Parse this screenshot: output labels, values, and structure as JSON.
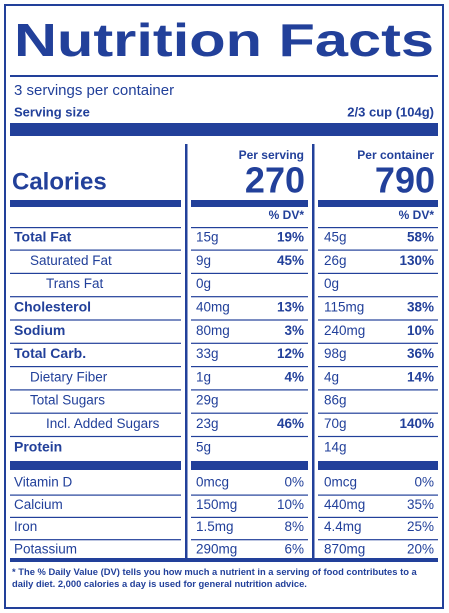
{
  "title": "Nutrition Facts",
  "servings": "3 servings per container",
  "serving_size": {
    "label": "Serving size",
    "value": "2/3 cup (104g)"
  },
  "calories_label": "Calories",
  "columns": [
    {
      "header": "Per serving",
      "calories": "270",
      "dv_header": "% DV*"
    },
    {
      "header": "Per container",
      "calories": "790",
      "dv_header": "% DV*"
    }
  ],
  "nutrients": [
    {
      "name": "Total Fat",
      "serving": {
        "amount": "15g",
        "dv": "19%"
      },
      "container": {
        "amount": "45g",
        "dv": "58%"
      }
    },
    {
      "name": "Saturated Fat",
      "serving": {
        "amount": "9g",
        "dv": "45%"
      },
      "container": {
        "amount": "26g",
        "dv": "130%"
      }
    },
    {
      "name": "Trans Fat",
      "serving": {
        "amount": "0g"
      },
      "container": {
        "amount": "0g"
      }
    },
    {
      "name": "Cholesterol",
      "serving": {
        "amount": "40mg",
        "dv": "13%"
      },
      "container": {
        "amount": "115mg",
        "dv": "38%"
      }
    },
    {
      "name": "Sodium",
      "serving": {
        "amount": "80mg",
        "dv": "3%"
      },
      "container": {
        "amount": "240mg",
        "dv": "10%"
      }
    },
    {
      "name": "Total Carb.",
      "serving": {
        "amount": "33g",
        "dv": "12%"
      },
      "container": {
        "amount": "98g",
        "dv": "36%"
      }
    },
    {
      "name": "Dietary Fiber",
      "serving": {
        "amount": "1g",
        "dv": "4%"
      },
      "container": {
        "amount": "4g",
        "dv": "14%"
      }
    },
    {
      "name": "Total Sugars",
      "serving": {
        "amount": "29g"
      },
      "container": {
        "amount": "86g"
      }
    },
    {
      "name": "Incl. Added Sugars",
      "serving": {
        "amount": "23g",
        "dv": "46%"
      },
      "container": {
        "amount": "70g",
        "dv": "140%"
      }
    },
    {
      "name": "Protein",
      "serving": {
        "amount": "5g"
      },
      "container": {
        "amount": "14g"
      }
    }
  ],
  "vitamins": [
    {
      "name": "Vitamin D",
      "serving": {
        "amount": "0mcg",
        "dv": "0%"
      },
      "container": {
        "amount": "0mcg",
        "dv": "0%"
      }
    },
    {
      "name": "Calcium",
      "serving": {
        "amount": "150mg",
        "dv": "10%"
      },
      "container": {
        "amount": "440mg",
        "dv": "35%"
      }
    },
    {
      "name": "Iron",
      "serving": {
        "amount": "1.5mg",
        "dv": "8%"
      },
      "container": {
        "amount": "4.4mg",
        "dv": "25%"
      }
    },
    {
      "name": "Potassium",
      "serving": {
        "amount": "290mg",
        "dv": "6%"
      },
      "container": {
        "amount": "870mg",
        "dv": "20%"
      }
    }
  ],
  "footnote": "* The % Daily Value (DV) tells you how much a nutrient in a serving of food contributes to a daily diet. 2,000 calories a day is used for general nutrition advice."
}
